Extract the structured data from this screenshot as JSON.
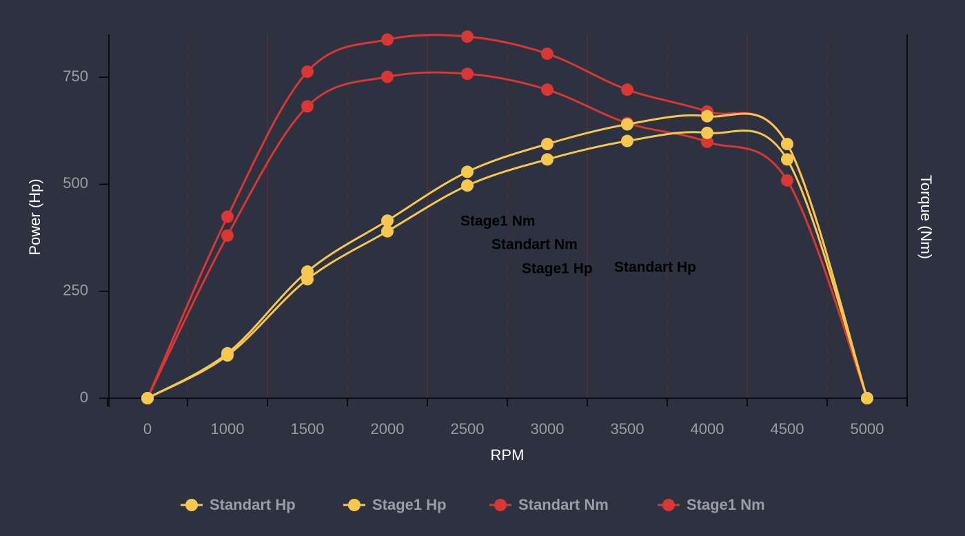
{
  "chart_data": {
    "type": "line",
    "categories": [
      "0",
      "1000",
      "1500",
      "2000",
      "2500",
      "3000",
      "3500",
      "4000",
      "4500",
      "5000"
    ],
    "x_label": "RPM",
    "y_label": "Power (Hp)",
    "y2_label": "Torque (Nm)",
    "ylim": [
      0,
      850
    ],
    "yticks": [
      0,
      250,
      500,
      750
    ],
    "grid": true,
    "series": [
      {
        "name": "Standart Hp",
        "color": "#f7c851",
        "values": [
          0,
          100,
          278,
          390,
          497,
          558,
          601,
          620,
          558,
          0
        ]
      },
      {
        "name": "Stage1 Hp",
        "color": "#f7c851",
        "values": [
          0,
          105,
          296,
          415,
          529,
          594,
          640,
          659,
          594,
          0
        ]
      },
      {
        "name": "Standart Nm",
        "color": "#d93636",
        "values": [
          0,
          380,
          682,
          751,
          758,
          721,
          643,
          599,
          509,
          0
        ]
      },
      {
        "name": "Stage1 Nm",
        "color": "#d93636",
        "values": [
          0,
          424,
          763,
          838,
          845,
          805,
          721,
          670,
          594,
          0
        ]
      }
    ],
    "annotations": [
      "Stage1 Nm",
      "Standart Nm",
      "Stage1 Hp",
      "Standart Hp"
    ]
  }
}
